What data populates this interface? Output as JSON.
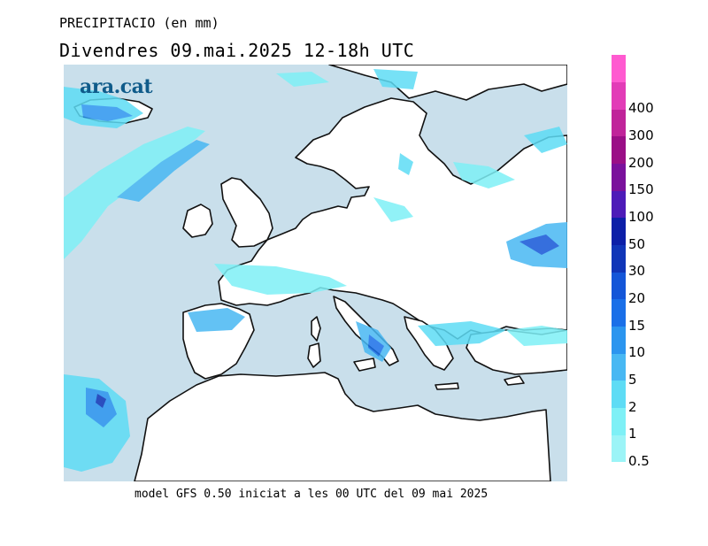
{
  "header": {
    "variable": "PRECIPITACIO (en mm)",
    "period": "Divendres  09.mai.2025  12-18h UTC"
  },
  "logo": {
    "text": "ara.cat"
  },
  "footer": {
    "model_info": "model GFS 0.50 iniciat a les 00 UTC del 09 mai 2025"
  },
  "legend": {
    "levels": [
      {
        "label": "0.5",
        "color": "#9cf4f7"
      },
      {
        "label": "1",
        "color": "#7ef0f6"
      },
      {
        "label": "2",
        "color": "#5edcf5"
      },
      {
        "label": "5",
        "color": "#48b8f3"
      },
      {
        "label": "10",
        "color": "#2b95ef"
      },
      {
        "label": "15",
        "color": "#1a6fe8"
      },
      {
        "label": "20",
        "color": "#1456d8"
      },
      {
        "label": "30",
        "color": "#1035b8"
      },
      {
        "label": "50",
        "color": "#0c1fa8"
      },
      {
        "label": "100",
        "color": "#4d1bb8"
      },
      {
        "label": "150",
        "color": "#7a119c"
      },
      {
        "label": "200",
        "color": "#9a0f86"
      },
      {
        "label": "300",
        "color": "#c0249a"
      },
      {
        "label": "400",
        "color": "#e23cb7"
      },
      {
        "label": "",
        "color": "#ff5ad0"
      }
    ]
  },
  "colors": {
    "sea": "#c9dfeb",
    "land": "#ffffff",
    "coast": "#111111"
  }
}
